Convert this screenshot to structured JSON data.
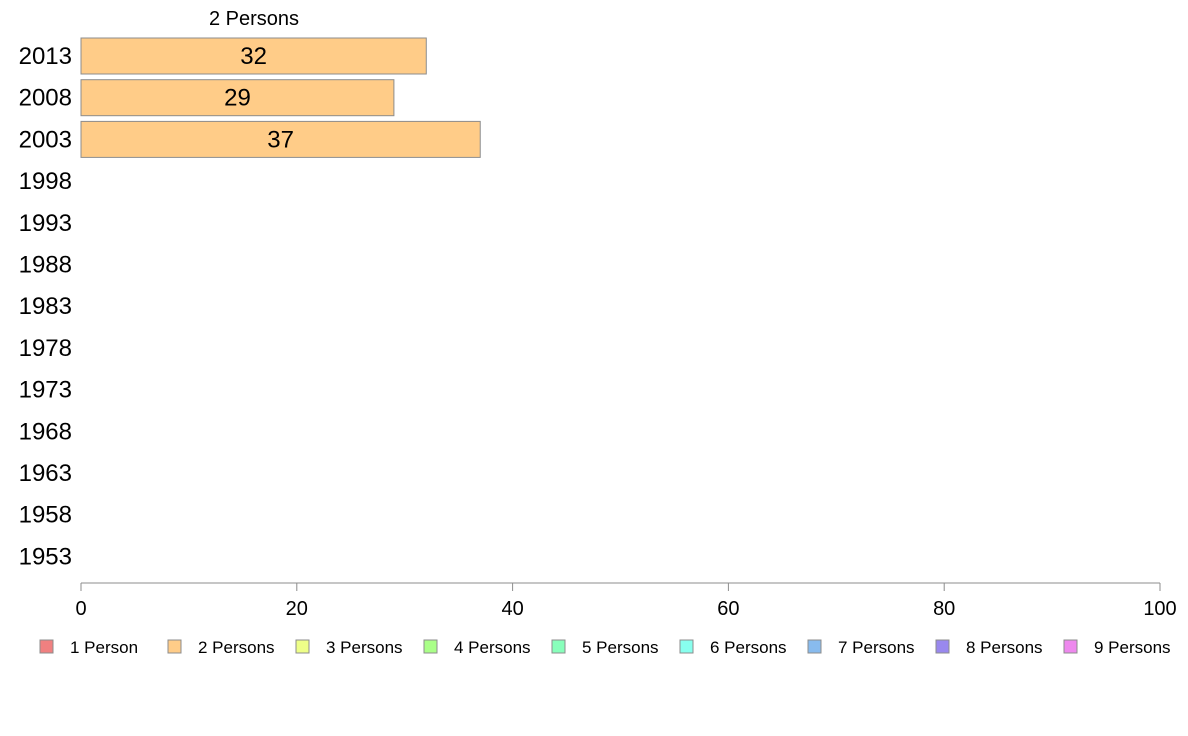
{
  "chart_data": {
    "type": "bar",
    "orientation": "horizontal",
    "title": "",
    "xlabel": "",
    "ylabel": "",
    "xlim": [
      0,
      100
    ],
    "x_ticks": [
      0,
      20,
      40,
      60,
      80,
      100
    ],
    "grid": false,
    "categories": [
      "2013",
      "2008",
      "2003",
      "1998",
      "1993",
      "1988",
      "1983",
      "1978",
      "1973",
      "1968",
      "1963",
      "1958",
      "1953"
    ],
    "displayed_series": "2 Persons",
    "series": [
      {
        "name": "2 Persons",
        "color": "#ffcc88",
        "values": [
          32,
          29,
          37,
          null,
          null,
          null,
          null,
          null,
          null,
          null,
          null,
          null,
          null
        ]
      }
    ],
    "legend_placement": "bottom",
    "legend": [
      {
        "name": "1 Person",
        "color": "#f08080"
      },
      {
        "name": "2 Persons",
        "color": "#ffcc88"
      },
      {
        "name": "3 Persons",
        "color": "#eeff88"
      },
      {
        "name": "4 Persons",
        "color": "#aaff88"
      },
      {
        "name": "5 Persons",
        "color": "#88ffbb"
      },
      {
        "name": "6 Persons",
        "color": "#88ffee"
      },
      {
        "name": "7 Persons",
        "color": "#88bbee"
      },
      {
        "name": "8 Persons",
        "color": "#9988ee"
      },
      {
        "name": "9 Persons",
        "color": "#ee88ee"
      }
    ]
  }
}
